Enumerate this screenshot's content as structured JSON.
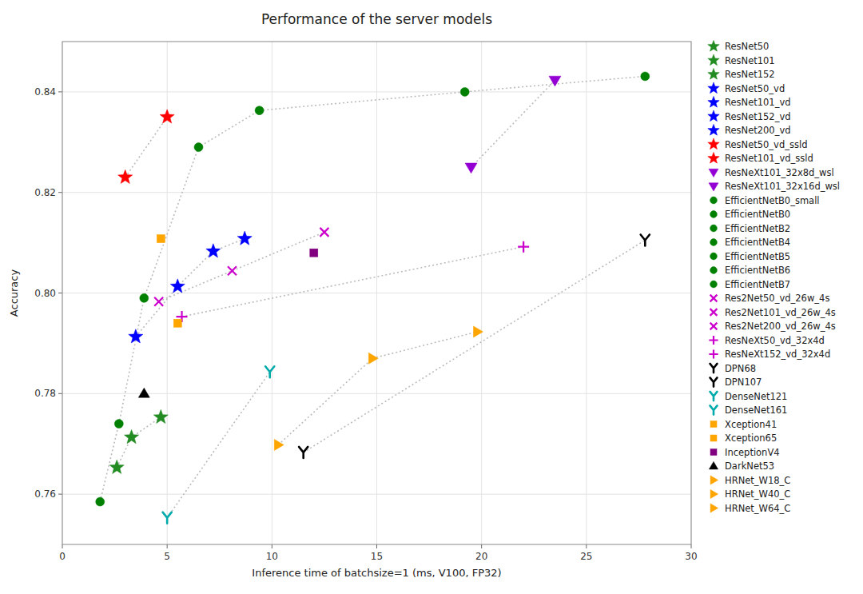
{
  "chart_data": {
    "type": "scatter",
    "title": "Performance of the server models",
    "xlabel": "Inference time of batchsize=1 (ms, V100, FP32)",
    "ylabel": "Accuracy",
    "xlim": [
      0,
      30
    ],
    "ylim": [
      0.75,
      0.85
    ],
    "xticks": [
      0,
      5,
      10,
      15,
      20,
      25,
      30
    ],
    "yticks": [
      0.76,
      0.78,
      {
        "value": 0.8,
        "label": "0.80"
      },
      0.82,
      0.84
    ],
    "grid": true,
    "legend": "right",
    "series": [
      {
        "name": "ResNet50",
        "color": "#228B22",
        "marker": "star",
        "x": [
          2.6
        ],
        "values": [
          0.7653
        ]
      },
      {
        "name": "ResNet101",
        "color": "#228B22",
        "marker": "star",
        "x": [
          3.3
        ],
        "values": [
          0.7713
        ]
      },
      {
        "name": "ResNet152",
        "color": "#228B22",
        "marker": "star",
        "x": [
          4.7
        ],
        "values": [
          0.7753
        ]
      },
      {
        "name": "ResNet50_vd",
        "color": "#0000FF",
        "marker": "star",
        "x": [
          3.5
        ],
        "values": [
          0.7913
        ]
      },
      {
        "name": "ResNet101_vd",
        "color": "#0000FF",
        "marker": "star",
        "x": [
          5.5
        ],
        "values": [
          0.8013
        ]
      },
      {
        "name": "ResNet152_vd",
        "color": "#0000FF",
        "marker": "star",
        "x": [
          7.2
        ],
        "values": [
          0.8083
        ]
      },
      {
        "name": "ResNet200_vd",
        "color": "#0000FF",
        "marker": "star",
        "x": [
          8.7
        ],
        "values": [
          0.8108
        ]
      },
      {
        "name": "ResNet50_vd_ssld",
        "color": "#FF0000",
        "marker": "star",
        "x": [
          3.0
        ],
        "values": [
          0.823
        ]
      },
      {
        "name": "ResNet101_vd_ssld",
        "color": "#FF0000",
        "marker": "star",
        "x": [
          5.0
        ],
        "values": [
          0.835
        ]
      },
      {
        "name": "ResNeXt101_32x8d_wsl",
        "color": "#9400D3",
        "marker": "triangle-down",
        "x": [
          19.5
        ],
        "values": [
          0.825
        ]
      },
      {
        "name": "ResNeXt101_32x16d_wsl",
        "color": "#9400D3",
        "marker": "triangle-down",
        "x": [
          23.5
        ],
        "values": [
          0.8423
        ]
      },
      {
        "name": "EfficientNetB0_small",
        "color": "#008000",
        "marker": "circle",
        "x": [
          1.8
        ],
        "values": [
          0.7585
        ]
      },
      {
        "name": "EfficientNetB0",
        "color": "#008000",
        "marker": "circle",
        "x": [
          2.7
        ],
        "values": [
          0.774
        ]
      },
      {
        "name": "EfficientNetB2",
        "color": "#008000",
        "marker": "circle",
        "x": [
          3.9
        ],
        "values": [
          0.799
        ]
      },
      {
        "name": "EfficientNetB4",
        "color": "#008000",
        "marker": "circle",
        "x": [
          6.5
        ],
        "values": [
          0.829
        ]
      },
      {
        "name": "EfficientNetB5",
        "color": "#008000",
        "marker": "circle",
        "x": [
          9.4
        ],
        "values": [
          0.8363
        ]
      },
      {
        "name": "EfficientNetB6",
        "color": "#008000",
        "marker": "circle",
        "x": [
          19.2
        ],
        "values": [
          0.84
        ]
      },
      {
        "name": "EfficientNetB7",
        "color": "#008000",
        "marker": "circle",
        "x": [
          27.8
        ],
        "values": [
          0.8431
        ]
      },
      {
        "name": "Res2Net50_vd_26w_4s",
        "color": "#CC00CC",
        "marker": "x",
        "x": [
          4.6
        ],
        "values": [
          0.7983
        ]
      },
      {
        "name": "Res2Net101_vd_26w_4s",
        "color": "#CC00CC",
        "marker": "x",
        "x": [
          8.1
        ],
        "values": [
          0.8044
        ]
      },
      {
        "name": "Res2Net200_vd_26w_4s",
        "color": "#CC00CC",
        "marker": "x",
        "x": [
          12.5
        ],
        "values": [
          0.8121
        ]
      },
      {
        "name": "ResNeXt50_vd_32x4d",
        "color": "#CC00CC",
        "marker": "plus",
        "x": [
          5.7
        ],
        "values": [
          0.7953
        ]
      },
      {
        "name": "ResNeXt152_vd_32x4d",
        "color": "#CC00CC",
        "marker": "plus",
        "x": [
          22.0
        ],
        "values": [
          0.8092
        ]
      },
      {
        "name": "DPN68",
        "color": "#000000",
        "marker": "y",
        "x": [
          11.5
        ],
        "values": [
          0.7683
        ]
      },
      {
        "name": "DPN107",
        "color": "#000000",
        "marker": "y",
        "x": [
          27.8
        ],
        "values": [
          0.8105
        ]
      },
      {
        "name": "DenseNet121",
        "color": "#00AAAA",
        "marker": "y",
        "x": [
          5.0
        ],
        "values": [
          0.7553
        ]
      },
      {
        "name": "DenseNet161",
        "color": "#00AAAA",
        "marker": "y",
        "x": [
          9.9
        ],
        "values": [
          0.7843
        ]
      },
      {
        "name": "Xception41",
        "color": "#FFA500",
        "marker": "square",
        "x": [
          4.7
        ],
        "values": [
          0.8108
        ]
      },
      {
        "name": "Xception65",
        "color": "#FFA500",
        "marker": "square",
        "x": [
          5.5
        ],
        "values": [
          0.794
        ]
      },
      {
        "name": "InceptionV4",
        "color": "#800080",
        "marker": "square",
        "x": [
          12.0
        ],
        "values": [
          0.808
        ]
      },
      {
        "name": "DarkNet53",
        "color": "#000000",
        "marker": "triangle-up",
        "x": [
          3.9
        ],
        "values": [
          0.78
        ]
      },
      {
        "name": "HRNet_W18_C",
        "color": "#FFA500",
        "marker": "triangle-right",
        "x": [
          10.3
        ],
        "values": [
          0.7698
        ]
      },
      {
        "name": "HRNet_W40_C",
        "color": "#FFA500",
        "marker": "triangle-right",
        "x": [
          14.8
        ],
        "values": [
          0.787
        ]
      },
      {
        "name": "HRNet_W64_C",
        "color": "#FFA500",
        "marker": "triangle-right",
        "x": [
          19.8
        ],
        "values": [
          0.7923
        ]
      },
      {
        "type": "line",
        "line_style": "dotted",
        "color": "#BBBBBB",
        "x": [
          1.8,
          2.7,
          3.9,
          6.5,
          9.4,
          19.2,
          27.8
        ],
        "values": [
          0.7585,
          0.774,
          0.799,
          0.829,
          0.8363,
          0.84,
          0.8431
        ]
      },
      {
        "type": "line",
        "line_style": "dotted",
        "color": "#BBBBBB",
        "x": [
          3.0,
          5.0
        ],
        "values": [
          0.823,
          0.835
        ]
      },
      {
        "type": "line",
        "line_style": "dotted",
        "color": "#BBBBBB",
        "x": [
          3.5,
          5.5,
          7.2,
          8.7
        ],
        "values": [
          0.7913,
          0.8013,
          0.8083,
          0.8108
        ]
      },
      {
        "type": "line",
        "line_style": "dotted",
        "color": "#BBBBBB",
        "x": [
          4.6,
          8.1,
          12.5
        ],
        "values": [
          0.7983,
          0.8044,
          0.8121
        ]
      },
      {
        "type": "line",
        "line_style": "dotted",
        "color": "#BBBBBB",
        "x": [
          5.7,
          22.0
        ],
        "values": [
          0.7953,
          0.8092
        ]
      },
      {
        "type": "line",
        "line_style": "dotted",
        "color": "#BBBBBB",
        "x": [
          11.5,
          27.8
        ],
        "values": [
          0.7683,
          0.8105
        ]
      },
      {
        "type": "line",
        "line_style": "dotted",
        "color": "#BBBBBB",
        "x": [
          5.0,
          9.9
        ],
        "values": [
          0.7553,
          0.7843
        ]
      },
      {
        "type": "line",
        "line_style": "dotted",
        "color": "#BBBBBB",
        "x": [
          10.3,
          14.8,
          19.8
        ],
        "values": [
          0.7698,
          0.787,
          0.7923
        ]
      },
      {
        "type": "line",
        "line_style": "dotted",
        "color": "#BBBBBB",
        "x": [
          19.5,
          23.5
        ],
        "values": [
          0.825,
          0.8423
        ]
      },
      {
        "type": "line",
        "line_style": "dotted",
        "color": "#BBBBBB",
        "x": [
          2.6,
          3.3,
          4.7
        ],
        "values": [
          0.7653,
          0.7713,
          0.7753
        ]
      }
    ]
  }
}
